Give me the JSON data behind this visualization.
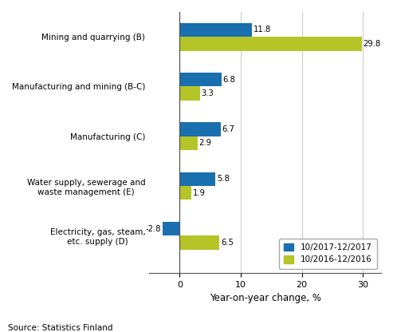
{
  "categories": [
    "Mining and quarrying (B)",
    "Manufacturing and mining (B-C)",
    "Manufacturing (C)",
    "Water supply, sewerage and\nwaste management (E)",
    "Electricity, gas, steam,\netc. supply (D)"
  ],
  "series": {
    "10/2017-12/2017": [
      11.8,
      6.8,
      6.7,
      5.8,
      -2.8
    ],
    "10/2016-12/2016": [
      29.8,
      3.3,
      2.9,
      1.9,
      6.5
    ]
  },
  "colors": {
    "10/2017-12/2017": "#1a6faf",
    "10/2016-12/2016": "#b5c427"
  },
  "xlim": [
    -5,
    33
  ],
  "xticks": [
    0,
    10,
    20,
    30
  ],
  "xlabel": "Year-on-year change, %",
  "source": "Source: Statistics Finland",
  "bar_height": 0.28,
  "label_fontsize": 7.5,
  "tick_fontsize": 8,
  "xlabel_fontsize": 8.5,
  "source_fontsize": 7.5,
  "legend_fontsize": 7.5,
  "value_fontsize": 7.2,
  "grid_color": "#cccccc",
  "background_color": "#ffffff"
}
